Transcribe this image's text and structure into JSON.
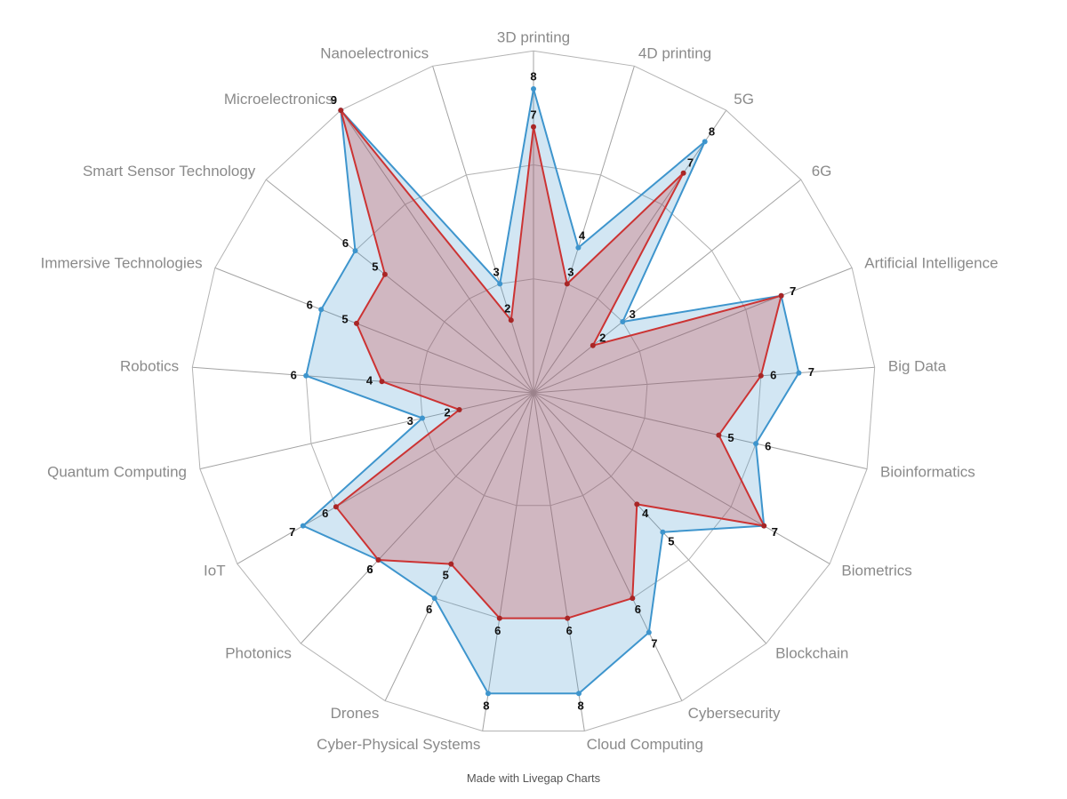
{
  "chart_data": {
    "type": "radar",
    "categories": [
      "3D printing",
      "4D printing",
      "5G",
      "6G",
      "Artificial Intelligence",
      "Big Data",
      "Bioinformatics",
      "Biometrics",
      "Blockchain",
      "Cybersecurity",
      "Cloud Computing",
      "Cyber-Physical Systems",
      "Drones",
      "Photonics",
      "IoT",
      "Quantum Computing",
      "Robotics",
      "Immersive Technologies",
      "Smart Sensor Technology",
      "Microelectronics",
      "Nanoelectronics"
    ],
    "series": [
      {
        "name": "blue",
        "line_color": "#3e95cd",
        "point_color": "#3e95cd",
        "fill_color": "rgba(62,149,205,0.23)",
        "values": [
          8,
          4,
          8,
          3,
          7,
          7,
          6,
          7,
          5,
          7,
          8,
          8,
          6,
          6,
          7,
          3,
          6,
          6,
          6,
          9,
          3
        ]
      },
      {
        "name": "red",
        "line_color": "#cc3333",
        "point_color": "#a82626",
        "fill_color": "rgba(204,51,51,0.26)",
        "values": [
          7,
          3,
          7,
          2,
          7,
          6,
          5,
          7,
          4,
          6,
          6,
          6,
          5,
          6,
          6,
          2,
          4,
          5,
          5,
          9,
          2
        ]
      }
    ],
    "scale": {
      "max": 9,
      "rings": [
        3,
        6,
        9
      ]
    },
    "legend_position": "none",
    "grid": true,
    "colors": {
      "ring": "#b3b3b3",
      "spoke": "#a3a3a3",
      "axis_label": "#8a8a8a",
      "value_label": "#111111",
      "background": "#ffffff"
    },
    "footer": "Made with Livegap Charts"
  }
}
